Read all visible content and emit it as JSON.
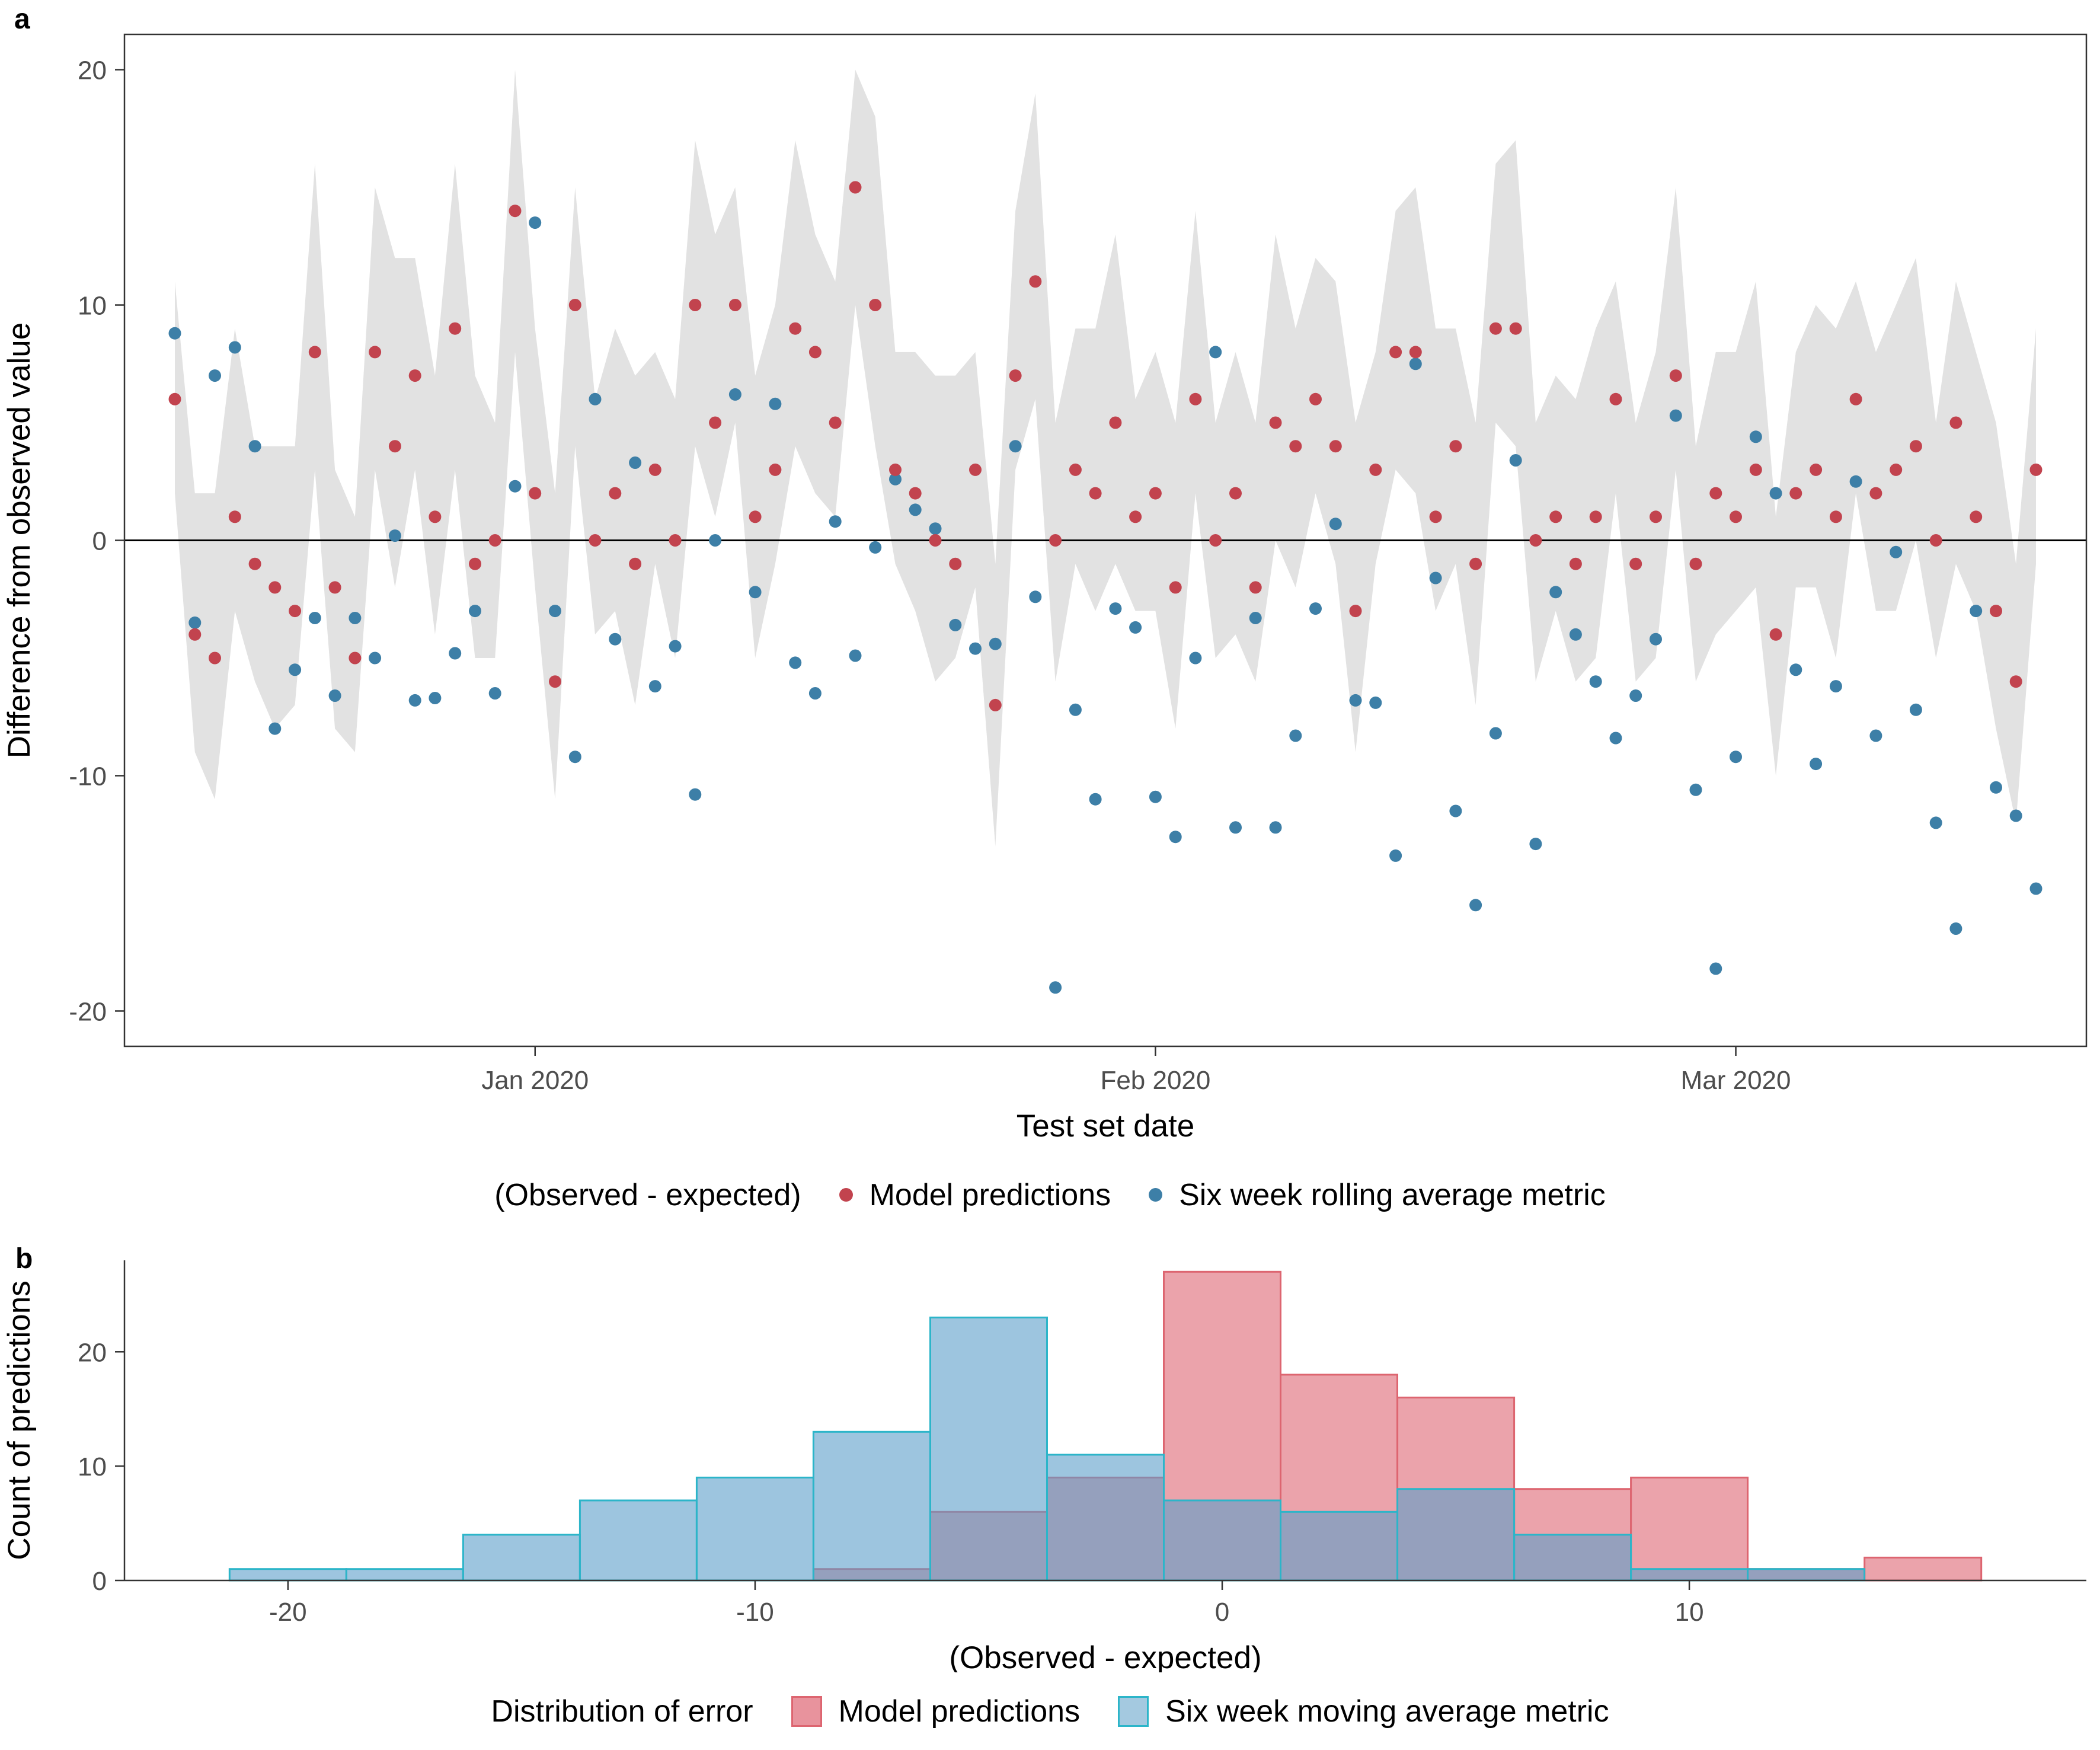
{
  "figure": {
    "panel_a_label": "a",
    "panel_b_label": "b"
  },
  "colors": {
    "model_point": "#c2434e",
    "rolling_point": "#3d7fa7",
    "ribbon": "#e2e2e2",
    "hist_model_fill": "#df6b77",
    "hist_model_stroke": "#dd6570",
    "hist_rolling_fill": "#5b9ec9",
    "hist_rolling_stroke": "#2cb5c9",
    "hist_model_key": "#e8939d",
    "hist_rolling_key": "#a4c9e0",
    "axis_line": "#333333",
    "tick_text": "#4d4d4d"
  },
  "chart_data": [
    {
      "type": "scatter",
      "xlabel": "Test set date",
      "ylabel": "Difference from observed value",
      "legend_title": "(Observed - expected)",
      "ylim": [
        -21.5,
        21.5
      ],
      "yticks": [
        -20,
        -10,
        0,
        10,
        20
      ],
      "x_tick_indices": [
        18,
        49,
        78
      ],
      "x_tick_labels": [
        "Jan 2020",
        "Feb 2020",
        "Mar 2020"
      ],
      "hline": 0,
      "grid": false,
      "legend_position": "bottom",
      "series": [
        {
          "name": "Model predictions",
          "values": [
            6,
            -4,
            -5,
            1,
            -1,
            -2,
            -3,
            8,
            -2,
            -5,
            8,
            4,
            7,
            1,
            9,
            -1,
            0,
            14,
            2,
            -6,
            10,
            0,
            2,
            -1,
            3,
            0,
            10,
            5,
            10,
            1,
            3,
            9,
            8,
            5,
            15,
            10,
            3,
            2,
            0,
            -1,
            3,
            -7,
            7,
            11,
            0,
            3,
            2,
            5,
            1,
            2,
            -2,
            6,
            0,
            2,
            -2,
            5,
            4,
            6,
            4,
            -3,
            3,
            8,
            8,
            1,
            4,
            -1,
            9,
            9,
            0,
            1,
            -1,
            1,
            6,
            -1,
            1,
            7,
            -1,
            2,
            1,
            3,
            -4,
            2,
            3,
            1,
            6,
            2,
            3,
            4,
            0,
            5,
            1,
            -3,
            -6,
            3
          ]
        },
        {
          "name": "Six week rolling average metric",
          "values": [
            8.8,
            -3.5,
            7,
            8.2,
            4,
            -8,
            -5.5,
            -3.3,
            -6.6,
            -3.3,
            -5,
            0.2,
            -6.8,
            -6.7,
            -4.8,
            -3,
            -6.5,
            2.3,
            13.5,
            -3,
            -9.2,
            6,
            -4.2,
            3.3,
            -6.2,
            -4.5,
            -10.8,
            0,
            6.2,
            -2.2,
            5.8,
            -5.2,
            -6.5,
            0.8,
            -4.9,
            -0.3,
            2.6,
            1.3,
            0.5,
            -3.6,
            -4.6,
            -4.4,
            4,
            -2.4,
            -19,
            -7.2,
            -11,
            -2.9,
            -3.7,
            -10.9,
            -12.6,
            -5,
            8,
            -12.2,
            -3.3,
            -12.2,
            -8.3,
            -2.9,
            0.7,
            -6.8,
            -6.9,
            -13.4,
            7.5,
            -1.6,
            -11.5,
            -15.5,
            -8.2,
            3.4,
            -12.9,
            -2.2,
            -4,
            -6,
            -8.4,
            -6.6,
            -4.2,
            5.3,
            -10.6,
            -18.2,
            -9.2,
            4.4,
            2,
            -5.5,
            -9.5,
            -6.2,
            2.5,
            -8.3,
            -0.5,
            -7.2,
            -12,
            -16.5,
            -3,
            -10.5,
            -11.7,
            -14.8
          ]
        }
      ],
      "ribbon": {
        "lower": [
          2,
          -9,
          -11,
          -3,
          -6,
          -8,
          -7,
          3,
          -8,
          -9,
          3,
          -2,
          3,
          -4,
          3,
          -5,
          -5,
          8,
          -2,
          -11,
          4,
          -4,
          -3,
          -7,
          -1,
          -5,
          4,
          1,
          5,
          -5,
          -1,
          4,
          2,
          1,
          10,
          4,
          -1,
          -3,
          -6,
          -5,
          -2,
          -13,
          3,
          6,
          -6,
          -1,
          -3,
          -1,
          -3,
          -3,
          -8,
          2,
          -5,
          -4,
          -6,
          0,
          -2,
          2,
          -1,
          -9,
          -1,
          3,
          2,
          -3,
          -1,
          -7,
          5,
          4,
          -6,
          -3,
          -6,
          -5,
          2,
          -6,
          -5,
          3,
          -6,
          -4,
          -3,
          -2,
          -10,
          -2,
          -2,
          -5,
          2,
          -3,
          -3,
          0,
          -5,
          -1,
          -3,
          -8,
          -12,
          -1
        ],
        "upper": [
          11,
          2,
          2,
          9,
          4,
          4,
          4,
          16,
          3,
          1,
          15,
          12,
          12,
          7,
          16,
          7,
          5,
          20,
          9,
          2,
          15,
          6,
          9,
          7,
          8,
          6,
          17,
          13,
          15,
          7,
          10,
          17,
          13,
          11,
          20,
          18,
          8,
          8,
          7,
          7,
          8,
          -1,
          14,
          19,
          5,
          9,
          9,
          13,
          6,
          8,
          5,
          14,
          5,
          8,
          5,
          13,
          9,
          12,
          11,
          5,
          8,
          14,
          15,
          9,
          9,
          5,
          16,
          17,
          5,
          7,
          6,
          9,
          11,
          5,
          8,
          15,
          4,
          8,
          8,
          11,
          1,
          8,
          10,
          9,
          11,
          8,
          10,
          12,
          5,
          11,
          8,
          5,
          -1,
          9
        ]
      }
    },
    {
      "type": "histogram",
      "xlabel": "(Observed - expected)",
      "ylabel": "Count of predictions",
      "legend_title": "Distribution of error",
      "bin_width": 2.5,
      "xlim": [
        -23.5,
        18.5
      ],
      "xticks": [
        -20,
        -10,
        0,
        10
      ],
      "ylim": [
        0,
        28
      ],
      "yticks": [
        0,
        10,
        20
      ],
      "grid": false,
      "legend_position": "bottom",
      "series": [
        {
          "name": "Model predictions",
          "bin_centers": [
            -7.5,
            -5,
            -2.5,
            0,
            2.5,
            5,
            7.5,
            10,
            12.5,
            15
          ],
          "counts": [
            1,
            6,
            9,
            27,
            18,
            16,
            8,
            9,
            1,
            2
          ]
        },
        {
          "name": "Six week moving average metric",
          "bin_centers": [
            -20,
            -17.5,
            -15,
            -12.5,
            -10,
            -7.5,
            -5,
            -2.5,
            0,
            2.5,
            5,
            7.5,
            10,
            12.5
          ],
          "counts": [
            1,
            1,
            4,
            7,
            9,
            13,
            23,
            11,
            7,
            6,
            8,
            4,
            1,
            1
          ]
        }
      ]
    }
  ]
}
